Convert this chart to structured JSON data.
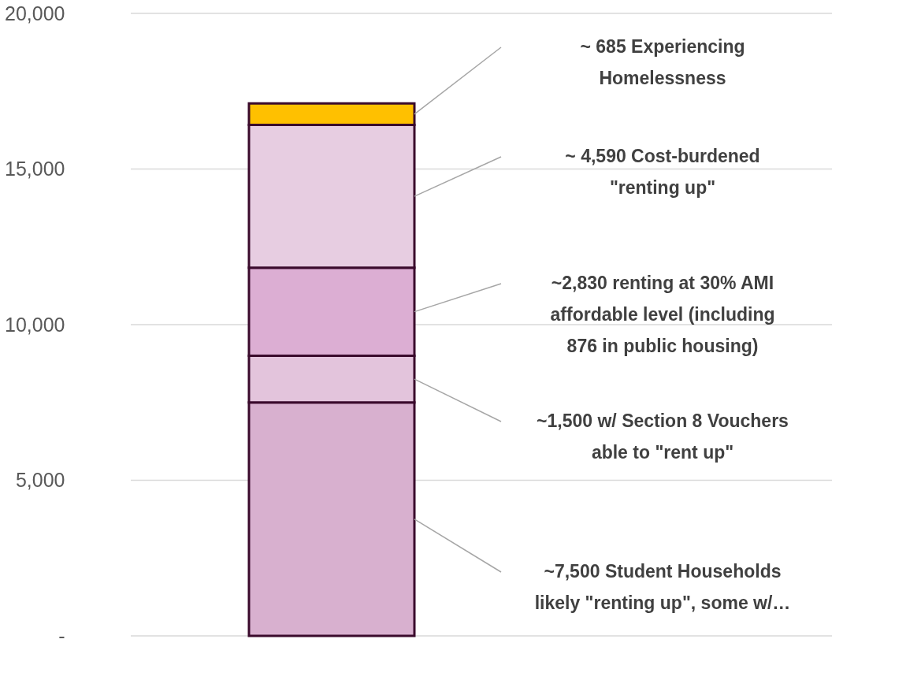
{
  "chart_data": {
    "type": "bar",
    "stacked": true,
    "categories": [
      null
    ],
    "series": [
      {
        "name": "~7,500 Student Households likely \"renting up\", some  w/…",
        "color": "#d8b0cf",
        "values": [
          7500
        ]
      },
      {
        "name": "~1,500 w/ Section 8 Vouchers able to \"rent up\"",
        "color": "#e3c4dc",
        "values": [
          1500
        ]
      },
      {
        "name": "~2,830  renting at 30% AMI affordable level (including 876 in public housing)",
        "color": "#dcaed3",
        "values": [
          2830
        ]
      },
      {
        "name": "~ 4,590  Cost-burdened \"renting up\"",
        "color": "#e7cde1",
        "values": [
          4590
        ]
      },
      {
        "name": "~ 685  Experiencing Homelessness",
        "color": "#ffc000",
        "values": [
          685
        ]
      }
    ],
    "ylim": [
      0,
      20000
    ],
    "yticks": [
      {
        "value": 0,
        "label": "-"
      },
      {
        "value": 5000,
        "label": "5,000"
      },
      {
        "value": 10000,
        "label": "10,000"
      },
      {
        "value": 15000,
        "label": "15,000"
      },
      {
        "value": 20000,
        "label": "20,000"
      }
    ],
    "grid": "y",
    "legend": false
  }
}
